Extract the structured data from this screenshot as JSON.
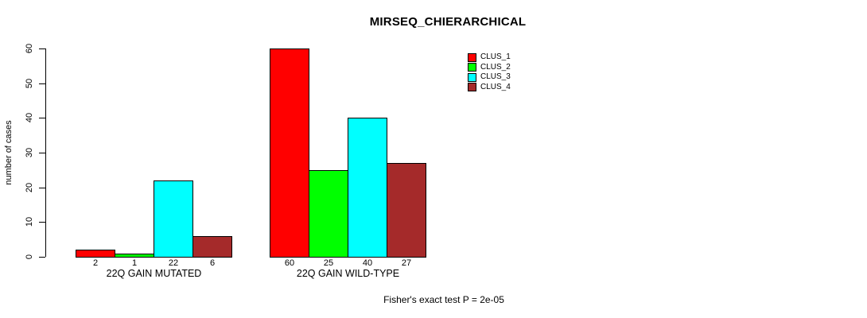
{
  "title": "MIRSEQ_CHIERARCHICAL",
  "footnote": "Fisher's exact test P = 2e-05",
  "chart_data": {
    "type": "bar",
    "title": "MIRSEQ_CHIERARCHICAL",
    "xlabel": "",
    "ylabel": "number of cases",
    "ylim": [
      0,
      60
    ],
    "yticks": [
      0,
      10,
      20,
      30,
      40,
      50,
      60
    ],
    "grid": false,
    "legend_position": "top-right",
    "bar_value_labels": true,
    "categories": [
      "22Q GAIN MUTATED",
      "22Q GAIN WILD-TYPE"
    ],
    "series": [
      {
        "name": "CLUS_1",
        "color": "#ff0000",
        "values": [
          2,
          60
        ]
      },
      {
        "name": "CLUS_2",
        "color": "#00ff00",
        "values": [
          1,
          25
        ]
      },
      {
        "name": "CLUS_3",
        "color": "#00ffff",
        "values": [
          22,
          40
        ]
      },
      {
        "name": "CLUS_4",
        "color": "#a52a2a",
        "values": [
          6,
          27
        ]
      }
    ],
    "annotation": "Fisher's exact test P = 2e-05"
  }
}
